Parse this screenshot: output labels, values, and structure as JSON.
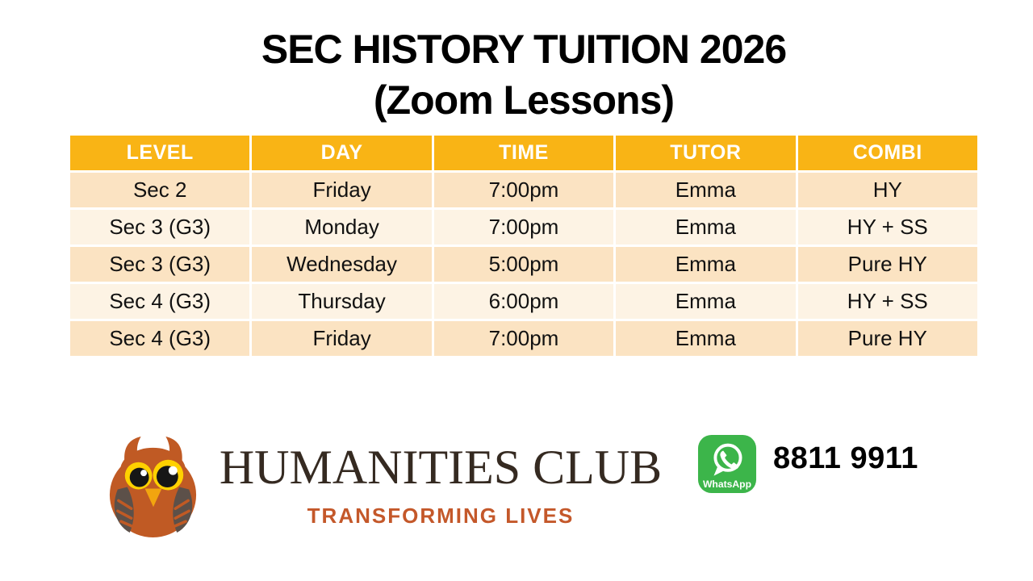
{
  "title": {
    "line1": "SEC HISTORY TUITION 2026",
    "line2": "(Zoom Lessons)"
  },
  "schedule_table": {
    "headers": [
      "LEVEL",
      "DAY",
      "TIME",
      "TUTOR",
      "COMBI"
    ],
    "rows": [
      [
        "Sec 2",
        "Friday",
        "7:00pm",
        "Emma",
        "HY"
      ],
      [
        "Sec 3 (G3)",
        "Monday",
        "7:00pm",
        "Emma",
        "HY + SS"
      ],
      [
        "Sec 3 (G3)",
        "Wednesday",
        "5:00pm",
        "Emma",
        "Pure HY"
      ],
      [
        "Sec 4 (G3)",
        "Thursday",
        "6:00pm",
        "Emma",
        "HY + SS"
      ],
      [
        "Sec 4 (G3)",
        "Friday",
        "7:00pm",
        "Emma",
        "Pure HY"
      ]
    ]
  },
  "branding": {
    "owl_icon": "owl-logo",
    "name": "HUMANITIES CLUB",
    "tagline": "TRANSFORMING LIVES"
  },
  "contact": {
    "whatsapp_icon": "whatsapp-icon",
    "whatsapp_label": "WhatsApp",
    "phone": "8811 9911"
  },
  "colors": {
    "header_bg": "#F9B415",
    "row_odd": "#FBE3C2",
    "row_even": "#FDF3E4",
    "brand_dark": "#352A21",
    "tagline_rust": "#C4582A",
    "owl_body": "#C05A24",
    "owl_wing": "#5C5049",
    "owl_eye": "#FFD100",
    "owl_beak": "#F2A50F",
    "whatsapp_green": "#3CB54A"
  }
}
